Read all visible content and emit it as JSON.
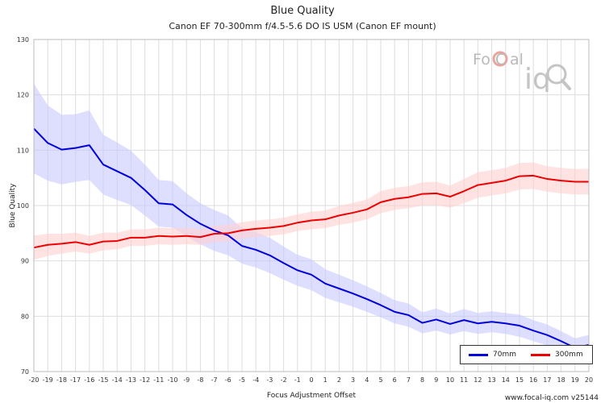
{
  "chart_data": {
    "type": "line",
    "title": "Blue Quality",
    "subtitle": "Canon EF 70-300mm f/4.5-5.6 DO IS USM (Canon EF mount)",
    "xlabel": "Focus Adjustment Offset",
    "ylabel": "Blue Quality",
    "xlim": [
      -20,
      20
    ],
    "ylim": [
      70,
      130
    ],
    "yticks": [
      70,
      80,
      90,
      100,
      110,
      120,
      130
    ],
    "x": [
      -20,
      -19,
      -18,
      -17,
      -16,
      -15,
      -14,
      -13,
      -12,
      -11,
      -10,
      -9,
      -8,
      -7,
      -6,
      -5,
      -4,
      -3,
      -2,
      -1,
      0,
      1,
      2,
      3,
      4,
      5,
      6,
      7,
      8,
      9,
      10,
      11,
      12,
      13,
      14,
      15,
      16,
      17,
      18,
      19,
      20
    ],
    "grid": true,
    "legend_position": "bottom-right",
    "series": [
      {
        "name": "70mm",
        "color": "#0000dd",
        "band_color": "#c8c8ff",
        "values": [
          113.9,
          111.3,
          110.1,
          110.4,
          110.9,
          107.4,
          106.2,
          105.0,
          102.8,
          100.4,
          100.2,
          98.3,
          96.7,
          95.5,
          94.6,
          92.7,
          92.0,
          91.0,
          89.6,
          88.3,
          87.5,
          85.9,
          85.0,
          84.1,
          83.1,
          82.0,
          80.8,
          80.2,
          78.8,
          79.4,
          78.6,
          79.3,
          78.7,
          79.0,
          78.7,
          78.3,
          77.4,
          76.6,
          75.5,
          74.3,
          74.8
        ],
        "lower": [
          105.8,
          104.5,
          103.8,
          104.3,
          104.6,
          102.0,
          101.0,
          100.1,
          98.2,
          96.2,
          96.0,
          94.4,
          93.0,
          91.8,
          91.0,
          89.5,
          88.8,
          87.8,
          86.6,
          85.5,
          84.7,
          83.3,
          82.5,
          81.7,
          80.8,
          79.8,
          78.7,
          78.1,
          76.9,
          77.4,
          76.7,
          77.3,
          76.8,
          77.1,
          76.8,
          76.3,
          75.5,
          74.7,
          73.7,
          72.6,
          73.0
        ],
        "upper": [
          122.0,
          118.1,
          116.4,
          116.5,
          117.2,
          112.8,
          111.4,
          109.9,
          107.4,
          104.6,
          104.4,
          102.2,
          100.4,
          99.2,
          98.2,
          95.9,
          95.2,
          94.2,
          92.6,
          91.1,
          90.3,
          88.5,
          87.5,
          86.5,
          85.4,
          84.2,
          82.9,
          82.3,
          80.7,
          81.4,
          80.5,
          81.3,
          80.6,
          80.9,
          80.6,
          80.3,
          79.3,
          78.5,
          77.3,
          76.0,
          76.6
        ]
      },
      {
        "name": "300mm",
        "color": "#ee0000",
        "band_color": "#ffd0d0",
        "values": [
          92.4,
          92.9,
          93.1,
          93.4,
          92.9,
          93.5,
          93.6,
          94.2,
          94.2,
          94.5,
          94.4,
          94.5,
          94.3,
          94.9,
          95.0,
          95.5,
          95.8,
          96.0,
          96.3,
          96.9,
          97.3,
          97.5,
          98.2,
          98.7,
          99.3,
          100.6,
          101.2,
          101.5,
          102.1,
          102.2,
          101.6,
          102.6,
          103.7,
          104.1,
          104.5,
          105.3,
          105.4,
          104.8,
          104.5,
          104.3,
          104.3
        ],
        "lower": [
          90.2,
          90.9,
          91.3,
          91.7,
          91.3,
          91.9,
          92.1,
          92.7,
          92.7,
          93.0,
          92.9,
          93.0,
          92.9,
          93.4,
          93.5,
          94.0,
          94.3,
          94.5,
          94.8,
          95.4,
          95.7,
          95.9,
          96.5,
          96.9,
          97.5,
          98.6,
          99.2,
          99.5,
          100.0,
          100.1,
          99.6,
          100.4,
          101.4,
          101.8,
          102.2,
          102.9,
          103.0,
          102.5,
          102.2,
          102.0,
          102.0
        ],
        "upper": [
          94.6,
          94.9,
          94.9,
          95.1,
          94.5,
          95.1,
          95.1,
          95.7,
          95.7,
          96.0,
          95.9,
          96.0,
          95.7,
          96.4,
          96.5,
          97.0,
          97.3,
          97.5,
          97.8,
          98.4,
          98.9,
          99.1,
          99.9,
          100.5,
          101.1,
          102.6,
          103.2,
          103.5,
          104.2,
          104.3,
          103.6,
          104.8,
          106.0,
          106.4,
          106.8,
          107.7,
          107.8,
          107.1,
          106.8,
          106.6,
          106.6
        ]
      }
    ]
  },
  "watermark": {
    "logo_text": "FoCal",
    "logo_subtext": "iq",
    "logo_icon": "magnifier-icon"
  },
  "credit": "www.focal-iq.com  v25144"
}
